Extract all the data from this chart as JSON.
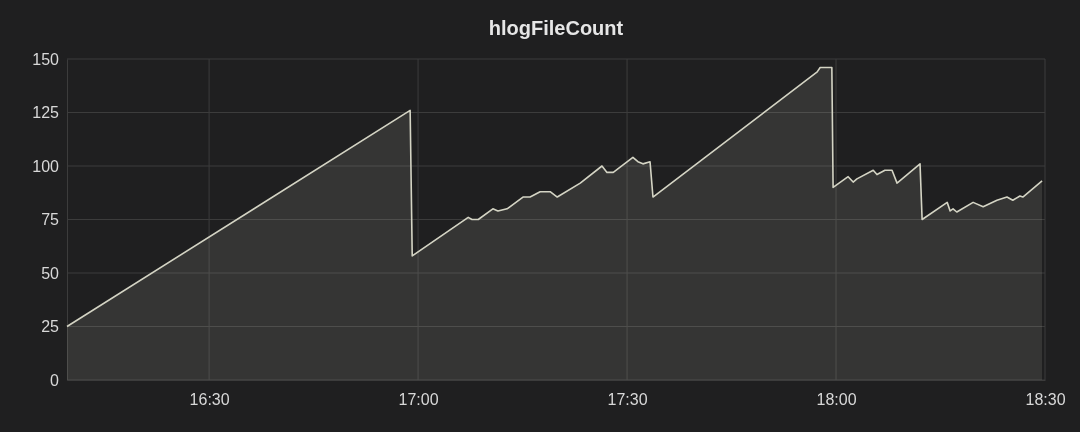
{
  "chart_data": {
    "type": "area",
    "title": "hlogFileCount",
    "x": [
      16.16,
      16.981,
      16.986,
      17.12,
      17.129,
      17.144,
      17.179,
      17.191,
      17.213,
      17.251,
      17.268,
      17.292,
      17.316,
      17.333,
      17.388,
      17.44,
      17.452,
      17.467,
      17.514,
      17.526,
      17.538,
      17.555,
      17.562,
      17.955,
      17.962,
      17.99,
      17.993,
      18.029,
      18.041,
      18.05,
      18.089,
      18.098,
      18.117,
      18.134,
      18.146,
      18.201,
      18.206,
      18.266,
      18.273,
      18.28,
      18.289,
      18.328,
      18.352,
      18.385,
      18.409,
      18.423,
      18.44,
      18.447,
      18.493
    ],
    "series": [
      {
        "color": "#d4d4c4",
        "values": [
          25,
          126,
          58,
          76,
          75,
          75,
          80,
          79,
          80,
          85.5,
          85.5,
          88,
          88,
          85.5,
          92,
          100,
          97,
          97,
          104,
          102,
          101,
          102,
          85.5,
          144,
          146,
          146,
          90,
          95,
          92.5,
          94,
          98,
          96,
          98,
          98,
          92,
          101,
          75,
          83,
          79,
          80,
          78.5,
          83,
          81,
          84,
          85.5,
          84,
          86,
          85.5,
          93
        ]
      }
    ],
    "xlim": [
      16.16,
      18.5
    ],
    "xticks": [
      {
        "value": 16.5,
        "label": "16:30"
      },
      {
        "value": 17,
        "label": "17:00"
      },
      {
        "value": 17.5,
        "label": "17:30"
      },
      {
        "value": 18,
        "label": "18:00"
      },
      {
        "value": 18.5,
        "label": "18:30"
      }
    ],
    "ylim": [
      0,
      150
    ],
    "yticks": [
      0,
      25,
      50,
      75,
      100,
      125,
      150
    ],
    "grid": true,
    "marker": "none",
    "line_style": "solid"
  }
}
